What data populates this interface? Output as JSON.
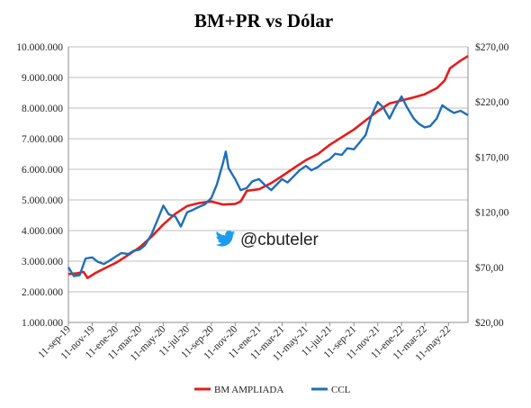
{
  "chart_data": {
    "type": "line",
    "title": "BM+PR vs Dólar",
    "xlabel": "",
    "ylabel": "",
    "x_ticks": [
      "11-sep-19",
      "11-nov-19",
      "11-ene-20",
      "11-mar-20",
      "11-may-20",
      "11-jul-20",
      "11-sep-20",
      "11-nov-20",
      "11-ene-21",
      "11-mar-21",
      "11-may-21",
      "11-jul-21",
      "11-sep-21",
      "11-nov-21",
      "11-ene-22",
      "11-mar-22",
      "11-may-22"
    ],
    "x_range": [
      "11-sep-19",
      "30-jun-22"
    ],
    "y_left": {
      "range": [
        1000000,
        10000000
      ],
      "ticks": [
        1000000,
        2000000,
        3000000,
        4000000,
        5000000,
        6000000,
        7000000,
        8000000,
        9000000,
        10000000
      ],
      "tick_labels": [
        "1.000.000",
        "2.000.000",
        "3.000.000",
        "4.000.000",
        "5.000.000",
        "6.000.000",
        "7.000.000",
        "8.000.000",
        "9.000.000",
        "10.000.000"
      ]
    },
    "y_right": {
      "range": [
        20,
        270
      ],
      "ticks": [
        20,
        70,
        120,
        170,
        220,
        270
      ],
      "tick_labels": [
        "$20,00",
        "$70,00",
        "$120,00",
        "$170,00",
        "$220,00",
        "$270,00"
      ]
    },
    "grid": "horizontal",
    "legend_position": "bottom",
    "annotation": "@cbuteler",
    "series": [
      {
        "name": "BM AMPLIADA",
        "axis": "left",
        "color": "#e41c1c",
        "points": [
          [
            "2019-09-11",
            2580000
          ],
          [
            "2019-10-01",
            2600000
          ],
          [
            "2019-10-20",
            2650000
          ],
          [
            "2019-10-30",
            2450000
          ],
          [
            "2019-11-20",
            2620000
          ],
          [
            "2019-12-15",
            2780000
          ],
          [
            "2020-01-11",
            2950000
          ],
          [
            "2020-02-11",
            3200000
          ],
          [
            "2020-03-11",
            3450000
          ],
          [
            "2020-04-11",
            3800000
          ],
          [
            "2020-05-11",
            4200000
          ],
          [
            "2020-06-11",
            4550000
          ],
          [
            "2020-07-11",
            4800000
          ],
          [
            "2020-08-11",
            4900000
          ],
          [
            "2020-09-11",
            4950000
          ],
          [
            "2020-10-11",
            4850000
          ],
          [
            "2020-11-11",
            4870000
          ],
          [
            "2020-11-25",
            4950000
          ],
          [
            "2020-12-11",
            5300000
          ],
          [
            "2021-01-11",
            5350000
          ],
          [
            "2021-02-11",
            5550000
          ],
          [
            "2021-03-11",
            5780000
          ],
          [
            "2021-04-11",
            6050000
          ],
          [
            "2021-05-11",
            6300000
          ],
          [
            "2021-06-11",
            6500000
          ],
          [
            "2021-07-11",
            6800000
          ],
          [
            "2021-08-11",
            7050000
          ],
          [
            "2021-09-11",
            7300000
          ],
          [
            "2021-10-11",
            7600000
          ],
          [
            "2021-11-11",
            7900000
          ],
          [
            "2021-12-11",
            8150000
          ],
          [
            "2022-01-11",
            8250000
          ],
          [
            "2022-02-11",
            8350000
          ],
          [
            "2022-03-11",
            8450000
          ],
          [
            "2022-04-11",
            8650000
          ],
          [
            "2022-05-01",
            8900000
          ],
          [
            "2022-05-15",
            9300000
          ],
          [
            "2022-06-11",
            9550000
          ],
          [
            "2022-06-30",
            9700000
          ]
        ]
      },
      {
        "name": "CCL",
        "axis": "right",
        "color": "#1f6fb4",
        "points": [
          [
            "2019-09-11",
            70
          ],
          [
            "2019-09-25",
            62
          ],
          [
            "2019-10-10",
            63
          ],
          [
            "2019-10-25",
            78
          ],
          [
            "2019-11-11",
            79
          ],
          [
            "2019-11-25",
            75
          ],
          [
            "2019-12-11",
            73
          ],
          [
            "2019-12-25",
            76
          ],
          [
            "2020-01-11",
            80
          ],
          [
            "2020-01-25",
            83
          ],
          [
            "2020-02-11",
            82
          ],
          [
            "2020-02-25",
            85
          ],
          [
            "2020-03-11",
            86
          ],
          [
            "2020-03-25",
            90
          ],
          [
            "2020-04-11",
            100
          ],
          [
            "2020-04-25",
            112
          ],
          [
            "2020-05-11",
            126
          ],
          [
            "2020-05-25",
            118
          ],
          [
            "2020-06-11",
            116
          ],
          [
            "2020-06-25",
            107
          ],
          [
            "2020-07-11",
            120
          ],
          [
            "2020-07-25",
            122
          ],
          [
            "2020-08-11",
            125
          ],
          [
            "2020-08-25",
            127
          ],
          [
            "2020-09-11",
            133
          ],
          [
            "2020-09-25",
            145
          ],
          [
            "2020-10-11",
            165
          ],
          [
            "2020-10-18",
            175
          ],
          [
            "2020-10-25",
            160
          ],
          [
            "2020-11-11",
            150
          ],
          [
            "2020-11-25",
            140
          ],
          [
            "2020-12-11",
            142
          ],
          [
            "2020-12-25",
            148
          ],
          [
            "2021-01-11",
            150
          ],
          [
            "2021-01-25",
            145
          ],
          [
            "2021-02-11",
            140
          ],
          [
            "2021-02-25",
            145
          ],
          [
            "2021-03-11",
            150
          ],
          [
            "2021-03-25",
            147
          ],
          [
            "2021-04-11",
            153
          ],
          [
            "2021-04-25",
            158
          ],
          [
            "2021-05-11",
            162
          ],
          [
            "2021-05-25",
            158
          ],
          [
            "2021-06-11",
            161
          ],
          [
            "2021-06-25",
            165
          ],
          [
            "2021-07-11",
            168
          ],
          [
            "2021-07-25",
            173
          ],
          [
            "2021-08-11",
            172
          ],
          [
            "2021-08-25",
            178
          ],
          [
            "2021-09-11",
            177
          ],
          [
            "2021-09-25",
            183
          ],
          [
            "2021-10-11",
            190
          ],
          [
            "2021-10-25",
            207
          ],
          [
            "2021-11-11",
            220
          ],
          [
            "2021-11-25",
            215
          ],
          [
            "2021-12-11",
            205
          ],
          [
            "2021-12-25",
            215
          ],
          [
            "2022-01-11",
            225
          ],
          [
            "2022-01-25",
            215
          ],
          [
            "2022-02-11",
            205
          ],
          [
            "2022-02-25",
            200
          ],
          [
            "2022-03-11",
            197
          ],
          [
            "2022-03-25",
            198
          ],
          [
            "2022-04-11",
            205
          ],
          [
            "2022-04-25",
            217
          ],
          [
            "2022-05-11",
            213
          ],
          [
            "2022-05-25",
            210
          ],
          [
            "2022-06-11",
            212
          ],
          [
            "2022-06-30",
            208
          ]
        ]
      }
    ]
  }
}
